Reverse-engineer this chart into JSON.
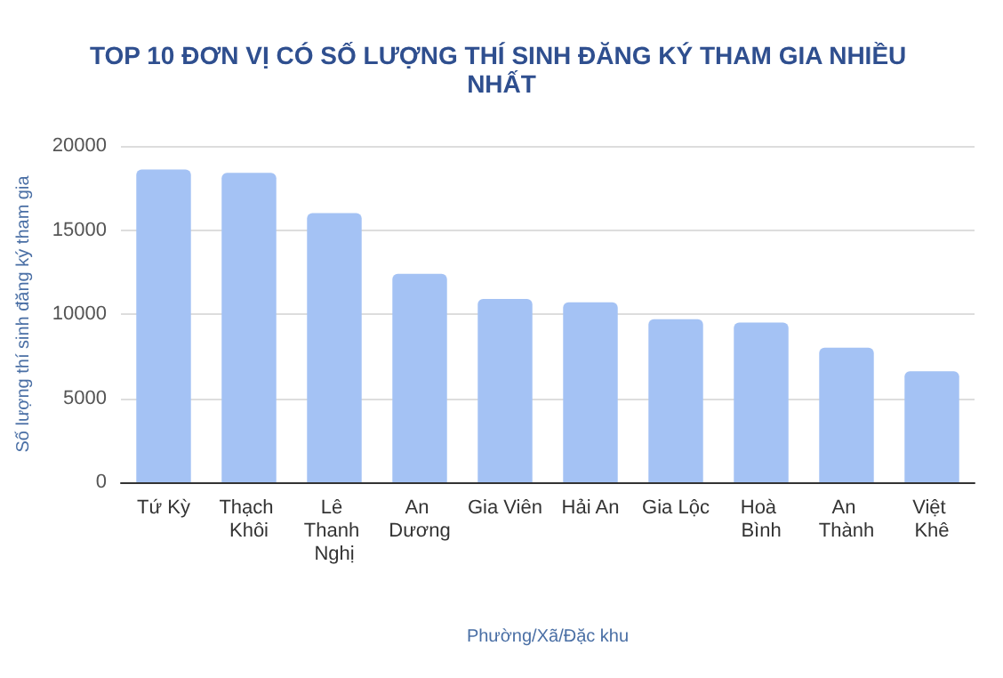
{
  "chart_data": {
    "type": "bar",
    "title": "TOP 10 ĐƠN VỊ CÓ SỐ LƯỢNG THÍ SINH ĐĂNG KÝ THAM GIA NHIỀU NHẤT",
    "xlabel": "Phường/Xã/Đặc khu",
    "ylabel": "Số lượng thí sinh đăng ký tham gia",
    "categories": [
      "Tứ Kỳ",
      "Thạch Khôi",
      "Lê Thanh Nghị",
      "An Dương",
      "Gia Viên",
      "Hải An",
      "Gia Lộc",
      "Hoà Bình",
      "An Thành",
      "Việt Khê"
    ],
    "values": [
      18600,
      18400,
      16000,
      12400,
      10900,
      10700,
      9700,
      9500,
      8000,
      6600
    ],
    "color": "#a4c2f4",
    "ylim": [
      0,
      20000
    ],
    "yticks": [
      0,
      5000,
      10000,
      15000,
      20000
    ],
    "grid": "y"
  }
}
